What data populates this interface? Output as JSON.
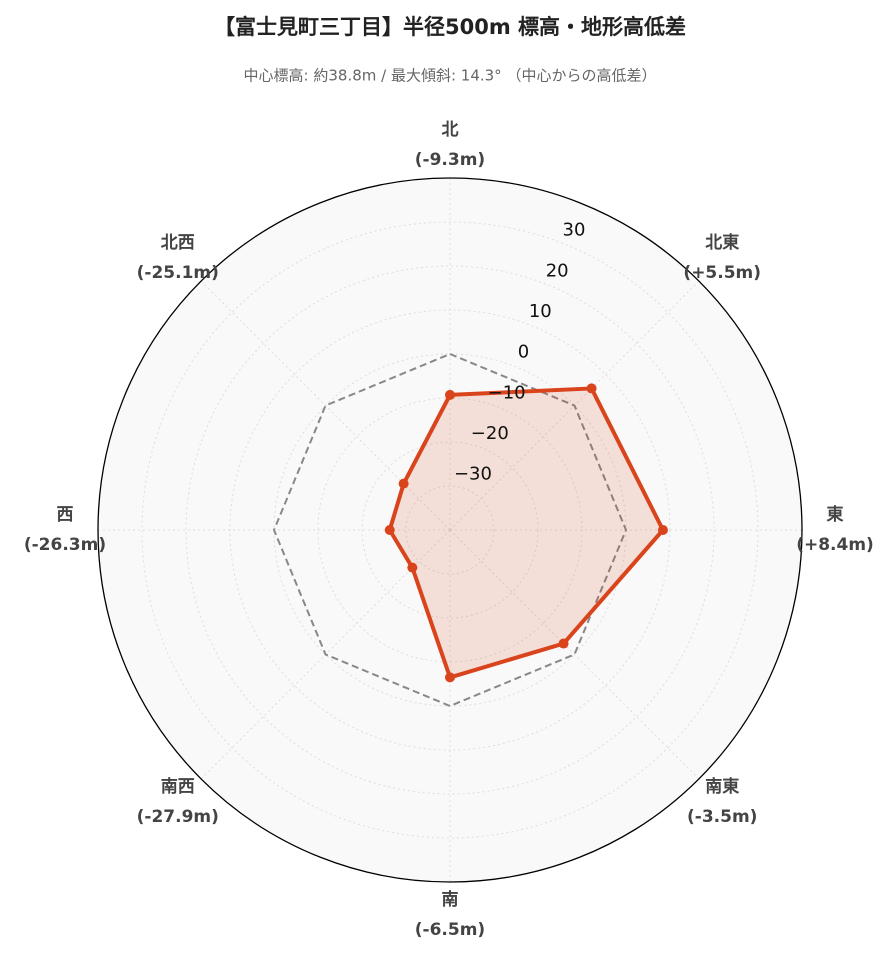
{
  "chart_data": {
    "type": "radar",
    "title": "【富士見町三丁目】半径500m 標高・地形高低差",
    "subtitle": "中心標高: 約38.8m / 最大傾斜: 14.3° （中心からの高低差）",
    "categories": [
      "北",
      "北東",
      "東",
      "南東",
      "南",
      "南西",
      "西",
      "北西"
    ],
    "values": [
      -9.3,
      5.5,
      8.4,
      -3.5,
      -6.5,
      -27.9,
      -26.3,
      -25.1
    ],
    "value_labels": [
      "(-9.3m)",
      "(+5.5m)",
      "(+8.4m)",
      "(-3.5m)",
      "(-6.5m)",
      "(-27.9m)",
      "(-26.3m)",
      "(-25.1m)"
    ],
    "color": "#d9441c",
    "ylim": [
      -40,
      40
    ],
    "yticks": [
      {
        "value": -30,
        "label": "−30"
      },
      {
        "value": -20,
        "label": "−20"
      },
      {
        "value": -10,
        "label": "−10"
      },
      0,
      10,
      20,
      30
    ],
    "grid": true
  }
}
